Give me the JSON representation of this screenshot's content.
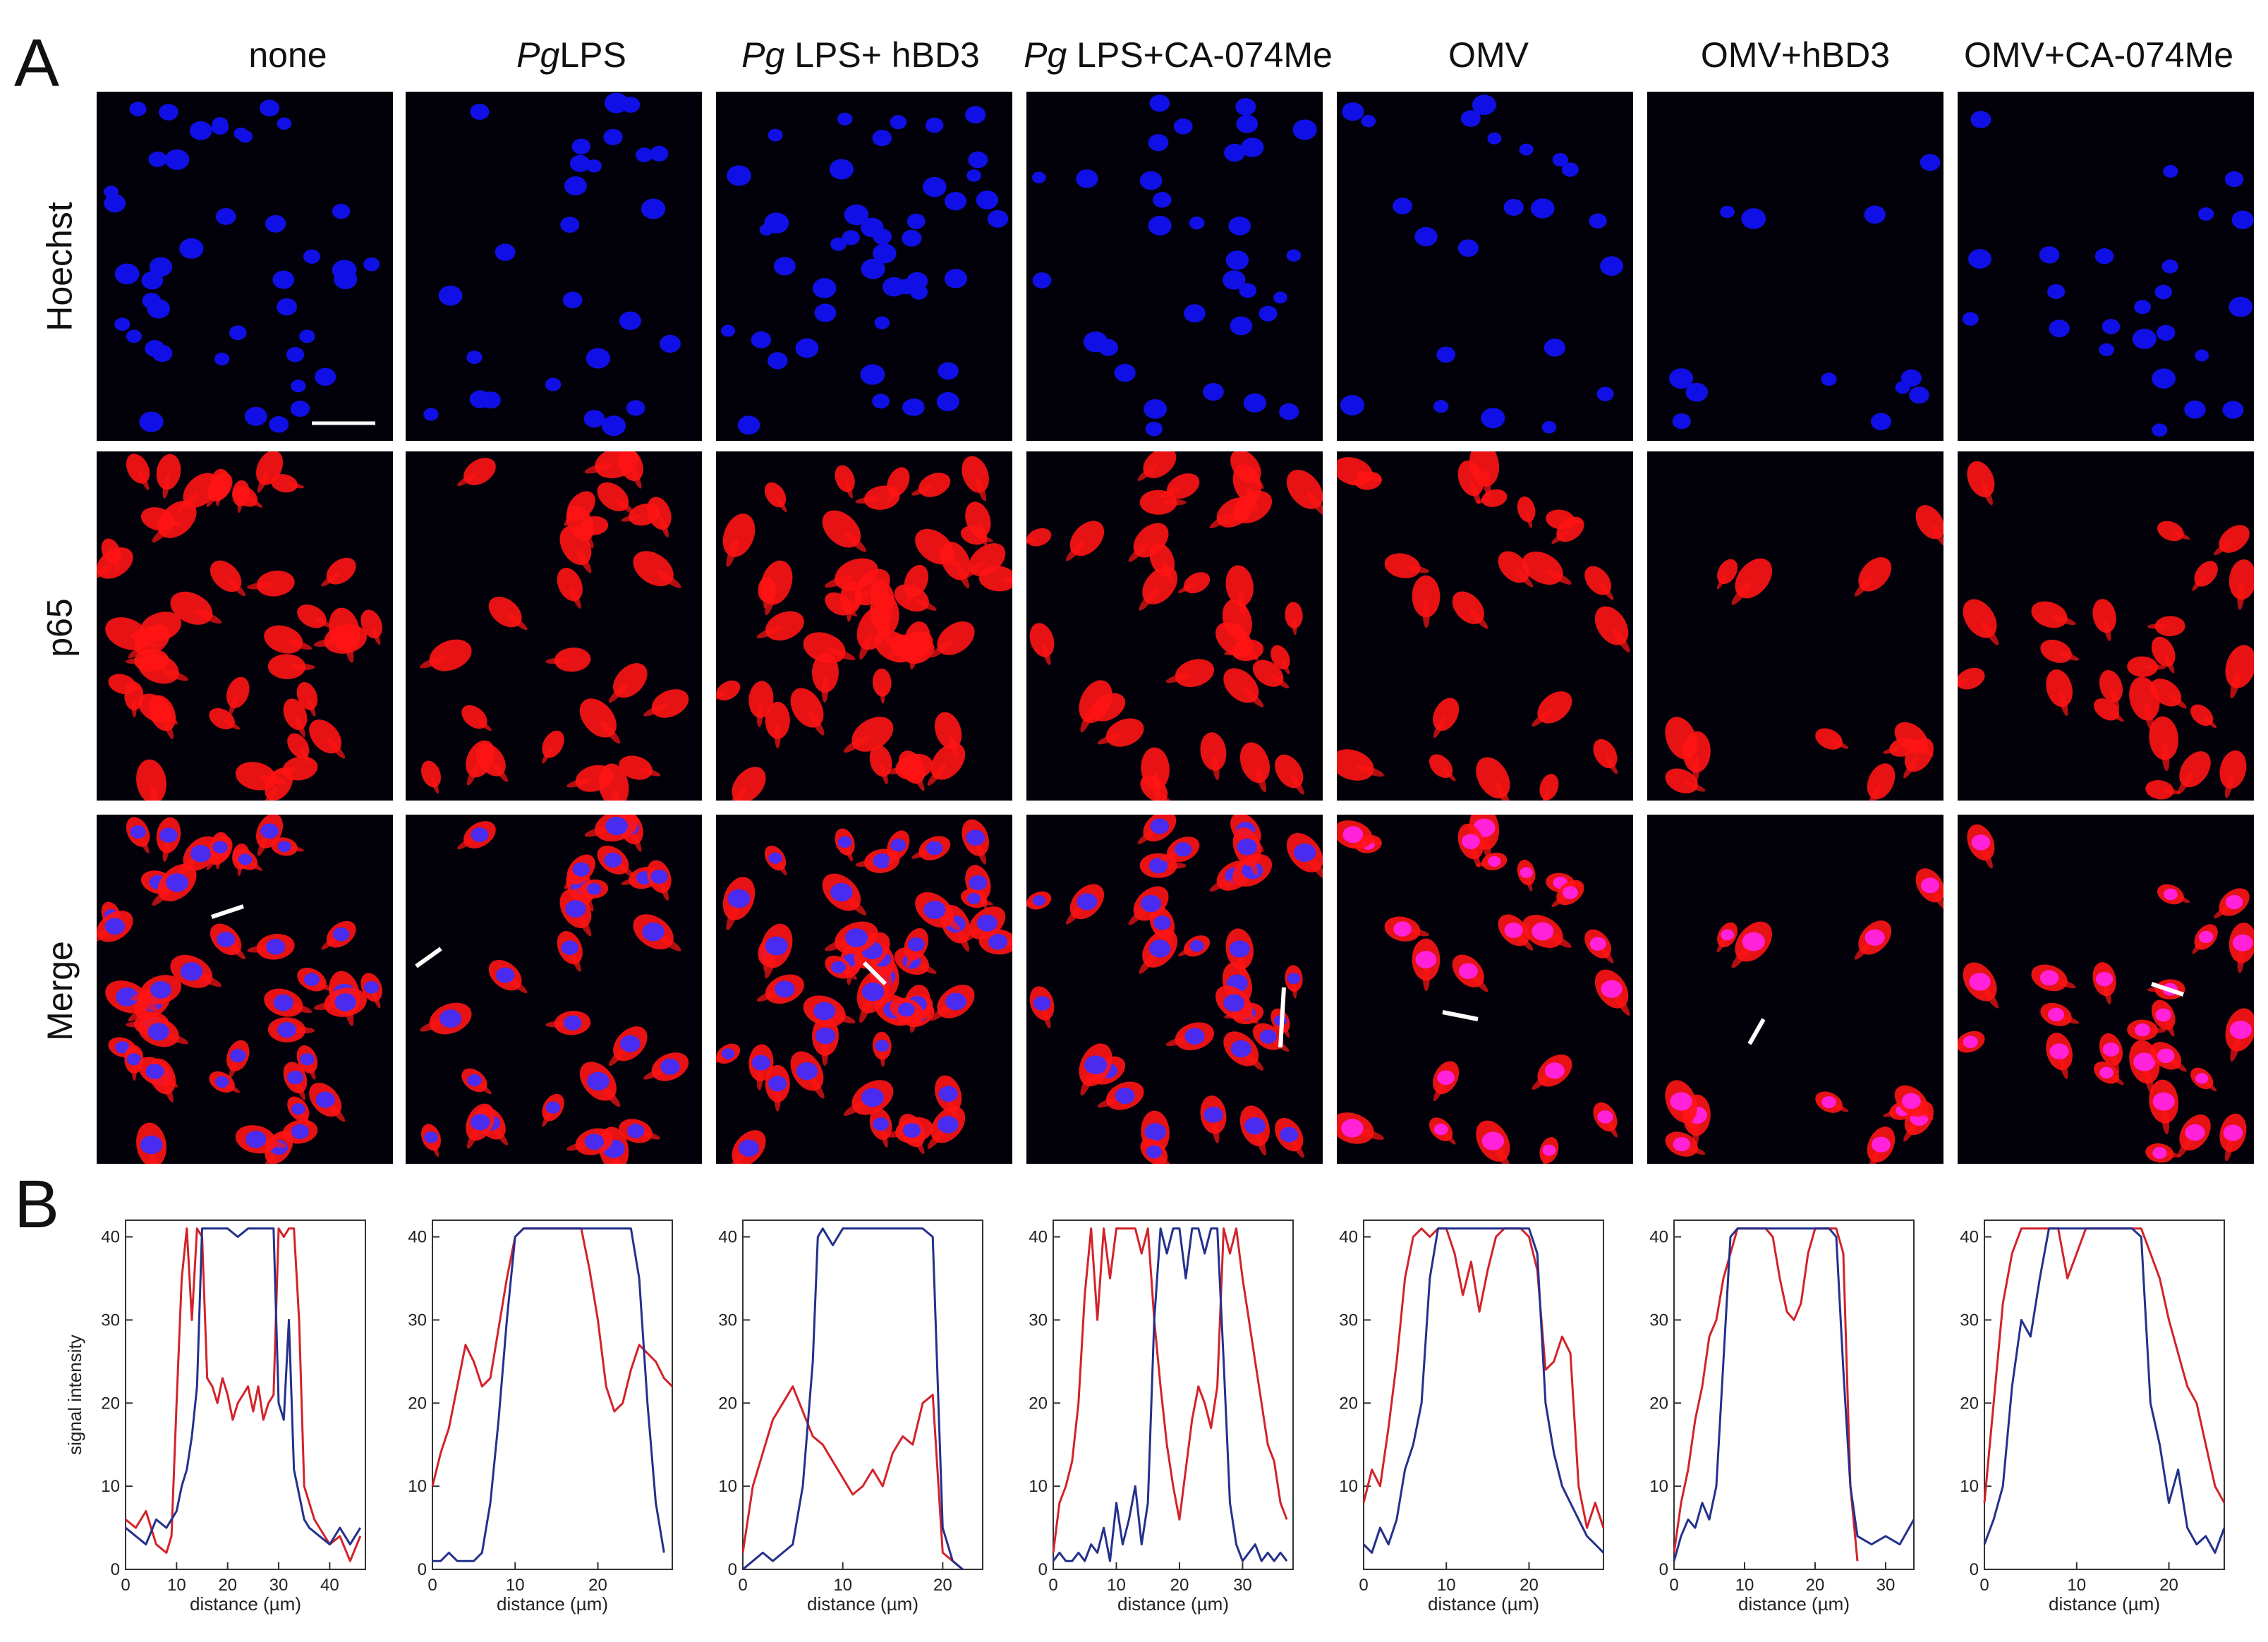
{
  "figure": {
    "panel_a_label": "A",
    "panel_b_label": "B",
    "columns": [
      {
        "label_italic": "",
        "label_plain": "none"
      },
      {
        "label_italic": "Pg",
        "label_plain": "LPS"
      },
      {
        "label_italic": "Pg",
        "label_plain": " LPS+ hBD3"
      },
      {
        "label_italic": "Pg",
        "label_plain": " LPS+CA-074Me"
      },
      {
        "label_italic": "",
        "label_plain": "OMV"
      },
      {
        "label_italic": "",
        "label_plain": "OMV+hBD3"
      },
      {
        "label_italic": "",
        "label_plain": "OMV+CA-074Me"
      }
    ],
    "rows": [
      "Hoechst",
      "p65",
      "Merge"
    ],
    "colors": {
      "hoechst": "#1010e6",
      "p65": "#ff1414",
      "merge_nucleus": "#ff22d8",
      "background": "#02010a",
      "red_line": "#d2232a",
      "blue_line": "#23318c"
    }
  },
  "chart_data": [
    {
      "type": "line",
      "xlabel": "distance (µm)",
      "ylabel": "signal intensity",
      "xlim": [
        0,
        47
      ],
      "ylim": [
        0,
        42
      ],
      "xticks": [
        "0",
        "10",
        "20",
        "30",
        "40"
      ],
      "yticks": [
        "0",
        "10",
        "20",
        "30",
        "40"
      ],
      "series": [
        {
          "color": "red",
          "x": [
            0,
            2,
            4,
            6,
            8,
            9,
            10,
            11,
            12,
            13,
            14,
            15,
            16,
            17,
            18,
            19,
            20,
            21,
            22,
            23,
            24,
            25,
            26,
            27,
            28,
            29,
            30,
            31,
            32,
            33,
            34,
            35,
            36,
            37,
            38,
            40,
            42,
            44,
            46
          ],
          "y": [
            6,
            5,
            7,
            3,
            2,
            4,
            20,
            35,
            41,
            30,
            41,
            40,
            23,
            22,
            20,
            23,
            21,
            18,
            20,
            21,
            22,
            19,
            22,
            18,
            20,
            21,
            41,
            40,
            41,
            41,
            30,
            10,
            8,
            6,
            5,
            3,
            4,
            1,
            4
          ]
        },
        {
          "color": "blue",
          "x": [
            0,
            2,
            4,
            6,
            8,
            10,
            11,
            12,
            13,
            14,
            15,
            16,
            18,
            20,
            22,
            24,
            26,
            28,
            29,
            30,
            31,
            32,
            33,
            34,
            35,
            36,
            38,
            40,
            42,
            44,
            46
          ],
          "y": [
            5,
            4,
            3,
            6,
            5,
            7,
            10,
            12,
            16,
            22,
            41,
            41,
            41,
            41,
            40,
            41,
            41,
            41,
            41,
            20,
            18,
            30,
            12,
            9,
            6,
            5,
            4,
            3,
            5,
            3,
            5
          ]
        }
      ]
    },
    {
      "type": "line",
      "xlabel": "distance (µm)",
      "ylabel": "",
      "xlim": [
        0,
        29
      ],
      "ylim": [
        0,
        42
      ],
      "xticks": [
        "0",
        "10",
        "20"
      ],
      "yticks": [
        "0",
        "10",
        "20",
        "30",
        "40"
      ],
      "series": [
        {
          "color": "red",
          "x": [
            0,
            1,
            2,
            3,
            4,
            5,
            6,
            7,
            8,
            9,
            10,
            11,
            12,
            14,
            16,
            18,
            19,
            20,
            21,
            22,
            23,
            24,
            25,
            26,
            27,
            28,
            29
          ],
          "y": [
            10,
            14,
            17,
            22,
            27,
            25,
            22,
            23,
            29,
            35,
            40,
            41,
            41,
            41,
            41,
            41,
            36,
            30,
            22,
            19,
            20,
            24,
            27,
            26,
            25,
            23,
            22
          ]
        },
        {
          "color": "blue",
          "x": [
            0,
            1,
            2,
            3,
            4,
            5,
            6,
            7,
            8,
            9,
            10,
            11,
            12,
            14,
            16,
            18,
            20,
            22,
            24,
            25,
            26,
            27,
            28
          ],
          "y": [
            1,
            1,
            2,
            1,
            1,
            1,
            2,
            8,
            18,
            30,
            40,
            41,
            41,
            41,
            41,
            41,
            41,
            41,
            41,
            35,
            20,
            8,
            2
          ]
        }
      ]
    },
    {
      "type": "line",
      "xlabel": "distance (µm)",
      "ylabel": "",
      "xlim": [
        0,
        24
      ],
      "ylim": [
        0,
        42
      ],
      "xticks": [
        "0",
        "10",
        "20"
      ],
      "yticks": [
        "0",
        "10",
        "20",
        "30",
        "40"
      ],
      "series": [
        {
          "color": "red",
          "x": [
            0,
            1,
            2,
            3,
            4,
            5,
            6,
            7,
            8,
            9,
            10,
            11,
            12,
            13,
            14,
            15,
            16,
            17,
            18,
            19,
            20,
            21,
            22
          ],
          "y": [
            2,
            10,
            14,
            18,
            20,
            22,
            19,
            16,
            15,
            13,
            11,
            9,
            10,
            12,
            10,
            14,
            16,
            15,
            20,
            21,
            2,
            1,
            0
          ]
        },
        {
          "color": "blue",
          "x": [
            0,
            1,
            2,
            3,
            4,
            5,
            6,
            7,
            7.5,
            8,
            9,
            10,
            12,
            14,
            16,
            18,
            19,
            20,
            21,
            22
          ],
          "y": [
            0,
            1,
            2,
            1,
            2,
            3,
            10,
            25,
            40,
            41,
            39,
            41,
            41,
            41,
            41,
            41,
            40,
            5,
            1,
            0
          ]
        }
      ]
    },
    {
      "type": "line",
      "xlabel": "distance (µm)",
      "ylabel": "",
      "xlim": [
        0,
        38
      ],
      "ylim": [
        0,
        42
      ],
      "xticks": [
        "0",
        "10",
        "20",
        "30"
      ],
      "yticks": [
        "0",
        "10",
        "20",
        "30",
        "40"
      ],
      "series": [
        {
          "color": "red",
          "x": [
            0,
            1,
            2,
            3,
            4,
            5,
            6,
            7,
            8,
            9,
            10,
            11,
            12,
            13,
            14,
            15,
            16,
            17,
            18,
            19,
            20,
            21,
            22,
            23,
            24,
            25,
            26,
            27,
            28,
            29,
            30,
            31,
            32,
            33,
            34,
            35,
            36,
            37
          ],
          "y": [
            2,
            8,
            10,
            13,
            20,
            33,
            41,
            30,
            41,
            35,
            41,
            41,
            41,
            41,
            38,
            41,
            30,
            22,
            15,
            10,
            6,
            12,
            18,
            22,
            20,
            17,
            22,
            41,
            38,
            41,
            35,
            30,
            25,
            20,
            15,
            13,
            8,
            6
          ]
        },
        {
          "color": "blue",
          "x": [
            0,
            1,
            2,
            3,
            4,
            5,
            6,
            7,
            8,
            9,
            10,
            11,
            12,
            13,
            14,
            15,
            16,
            17,
            18,
            19,
            20,
            21,
            22,
            23,
            24,
            25,
            26,
            27,
            28,
            29,
            30,
            31,
            32,
            33,
            34,
            35,
            36,
            37
          ],
          "y": [
            1,
            2,
            1,
            1,
            2,
            1,
            3,
            2,
            5,
            1,
            8,
            3,
            6,
            10,
            3,
            8,
            30,
            41,
            38,
            41,
            41,
            35,
            41,
            41,
            38,
            41,
            41,
            25,
            8,
            3,
            1,
            2,
            3,
            1,
            2,
            1,
            2,
            1
          ]
        }
      ]
    },
    {
      "type": "line",
      "xlabel": "distance (µm)",
      "ylabel": "",
      "xlim": [
        0,
        29
      ],
      "ylim": [
        0,
        42
      ],
      "xticks": [
        "0",
        "10",
        "20"
      ],
      "yticks": [
        "10",
        "20",
        "30",
        "40"
      ],
      "series": [
        {
          "color": "red",
          "x": [
            0,
            1,
            2,
            3,
            4,
            5,
            6,
            7,
            8,
            9,
            10,
            11,
            12,
            13,
            14,
            15,
            16,
            17,
            18,
            19,
            20,
            21,
            22,
            23,
            24,
            25,
            26,
            27,
            28,
            29
          ],
          "y": [
            8,
            12,
            10,
            17,
            25,
            35,
            40,
            41,
            40,
            41,
            41,
            38,
            33,
            37,
            31,
            36,
            40,
            41,
            41,
            41,
            40,
            36,
            24,
            25,
            28,
            26,
            10,
            5,
            8,
            5
          ]
        },
        {
          "color": "blue",
          "x": [
            0,
            1,
            2,
            3,
            4,
            5,
            6,
            7,
            8,
            9,
            10,
            11,
            12,
            14,
            16,
            18,
            20,
            21,
            22,
            23,
            24,
            25,
            26,
            27,
            28,
            29
          ],
          "y": [
            3,
            2,
            5,
            3,
            6,
            12,
            15,
            20,
            35,
            41,
            41,
            41,
            41,
            41,
            41,
            41,
            41,
            38,
            20,
            14,
            10,
            8,
            6,
            4,
            3,
            2
          ]
        }
      ]
    },
    {
      "type": "line",
      "xlabel": "distance (µm)",
      "ylabel": "",
      "xlim": [
        0,
        34
      ],
      "ylim": [
        0,
        42
      ],
      "xticks": [
        "0",
        "10",
        "20",
        "30"
      ],
      "yticks": [
        "0",
        "10",
        "20",
        "30",
        "40"
      ],
      "series": [
        {
          "color": "red",
          "x": [
            0,
            1,
            2,
            3,
            4,
            5,
            6,
            7,
            8,
            9,
            10,
            11,
            12,
            13,
            14,
            15,
            16,
            17,
            18,
            19,
            20,
            21,
            22,
            23,
            24,
            25,
            26
          ],
          "y": [
            2,
            8,
            12,
            18,
            22,
            28,
            30,
            35,
            38,
            41,
            41,
            41,
            41,
            41,
            40,
            35,
            31,
            30,
            32,
            38,
            41,
            41,
            41,
            41,
            38,
            10,
            1
          ]
        },
        {
          "color": "blue",
          "x": [
            0,
            1,
            2,
            3,
            4,
            5,
            6,
            7,
            8,
            9,
            10,
            12,
            14,
            16,
            18,
            20,
            22,
            23,
            24,
            25,
            26,
            28,
            30,
            32,
            34
          ],
          "y": [
            1,
            4,
            6,
            5,
            8,
            6,
            10,
            25,
            40,
            41,
            41,
            41,
            41,
            41,
            41,
            41,
            41,
            40,
            24,
            10,
            4,
            3,
            4,
            3,
            6
          ]
        }
      ]
    },
    {
      "type": "line",
      "xlabel": "distance (µm)",
      "ylabel": "",
      "xlim": [
        0,
        26
      ],
      "ylim": [
        0,
        42
      ],
      "xticks": [
        "0",
        "10",
        "20"
      ],
      "yticks": [
        "0",
        "10",
        "20",
        "30",
        "40"
      ],
      "series": [
        {
          "color": "red",
          "x": [
            0,
            1,
            2,
            3,
            4,
            5,
            6,
            7,
            8,
            9,
            10,
            11,
            12,
            13,
            14,
            15,
            16,
            17,
            18,
            19,
            20,
            21,
            22,
            23,
            24,
            25,
            26
          ],
          "y": [
            8,
            20,
            32,
            38,
            41,
            41,
            41,
            41,
            41,
            35,
            38,
            41,
            41,
            41,
            41,
            41,
            41,
            41,
            38,
            35,
            30,
            26,
            22,
            20,
            15,
            10,
            8
          ]
        },
        {
          "color": "blue",
          "x": [
            0,
            1,
            2,
            3,
            4,
            5,
            6,
            7,
            8,
            9,
            10,
            12,
            14,
            16,
            17,
            18,
            19,
            20,
            21,
            22,
            23,
            24,
            25,
            26
          ],
          "y": [
            3,
            6,
            10,
            22,
            30,
            28,
            35,
            41,
            41,
            41,
            41,
            41,
            41,
            41,
            40,
            20,
            15,
            8,
            12,
            5,
            3,
            4,
            2,
            5
          ]
        }
      ]
    }
  ]
}
